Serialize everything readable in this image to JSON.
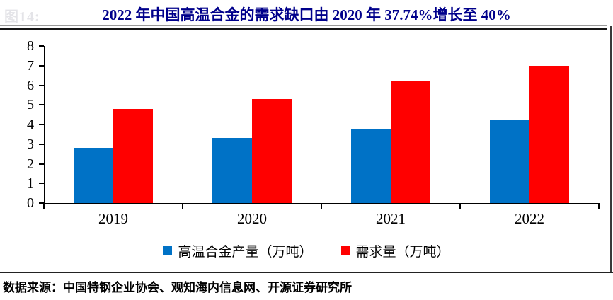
{
  "figure_label": "图14:",
  "title": "2022 年中国高温合金的需求缺口由 2020 年 37.74%增长至 40%",
  "source_note": "数据来源：中国特钢企业协会、观知海内信息网、开源证券研究所",
  "colors": {
    "title": "#00008B",
    "production_series": "#0072C6",
    "demand_series": "#FF0000",
    "axis": "#000000"
  },
  "chart_data": {
    "type": "bar",
    "title": "2022 年中国高温合金的需求缺口由 2020 年 37.74%增长至 40%",
    "categories": [
      "2019",
      "2020",
      "2021",
      "2022"
    ],
    "series": [
      {
        "name": "高温合金产量（万吨）",
        "color": "#0072C6",
        "values": [
          2.8,
          3.3,
          3.8,
          4.2
        ]
      },
      {
        "name": "需求量（万吨）",
        "color": "#FF0000",
        "values": [
          4.8,
          5.3,
          6.2,
          7.0
        ]
      }
    ],
    "xlabel": "",
    "ylabel": "",
    "ylim": [
      0,
      8
    ],
    "ytick_step": 1,
    "grid": false,
    "legend_position": "bottom"
  }
}
